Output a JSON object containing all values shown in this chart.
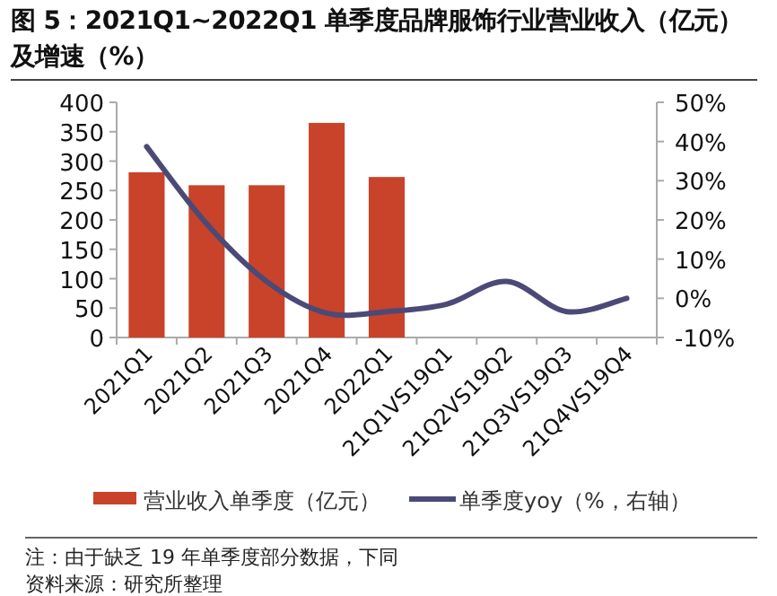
{
  "chart_data": {
    "type": "bar",
    "title": "图 5：2021Q1~2022Q1 单季度品牌服饰行业营业收入（亿元）及增速（%）",
    "categories": [
      "2021Q1",
      "2021Q2",
      "2021Q3",
      "2021Q4",
      "2022Q1",
      "21Q1VS19Q1",
      "21Q2VS19Q2",
      "21Q3VS19Q3",
      "21Q4VS19Q4"
    ],
    "series": [
      {
        "name": "营业收入单季度（亿元）",
        "color": "#c8432a",
        "values": [
          281,
          259,
          259,
          365,
          273,
          null,
          null,
          null,
          null
        ]
      },
      {
        "name": "单季度yoy（%，右轴）",
        "type": "line",
        "axis": "y2",
        "color": "#4b4a77",
        "values": [
          38.7,
          19,
          4.3,
          -3.8,
          -3.4,
          -1.5,
          4.3,
          -3.4,
          0
        ]
      }
    ],
    "ylim": [
      0,
      400
    ],
    "yticks": [
      0,
      50,
      100,
      150,
      200,
      250,
      300,
      350,
      400
    ],
    "y2lim": [
      -10,
      50
    ],
    "y2ticks": [
      {
        "value": -10,
        "label": "-10%"
      },
      {
        "value": 0,
        "label": "0%"
      },
      {
        "value": 10,
        "label": "10%"
      },
      {
        "value": 20,
        "label": "20%"
      },
      {
        "value": 30,
        "label": "30%"
      },
      {
        "value": 40,
        "label": "40%"
      },
      {
        "value": 50,
        "label": "50%"
      }
    ],
    "legend": "bottom",
    "grid": false,
    "line_style": "solid",
    "annotations": [
      "注：由于缺乏 19 年单季度部分数据，下同",
      "资料来源：研究所整理"
    ]
  }
}
